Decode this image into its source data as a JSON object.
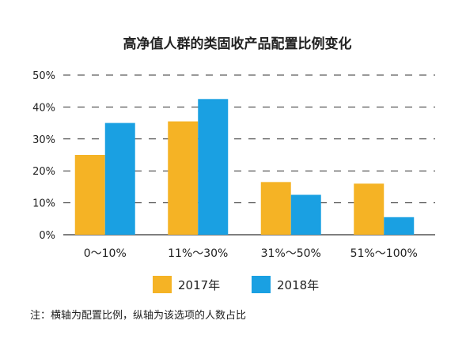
{
  "chart_data": {
    "type": "bar",
    "title": "高净值人群的类固收产品配置比例变化",
    "categories": [
      "0～10%",
      "11%～30%",
      "31%～50%",
      "51%～100%"
    ],
    "series": [
      {
        "name": "2017年",
        "values": [
          25,
          35.5,
          16.5,
          16
        ],
        "color": "#F5B325"
      },
      {
        "name": "2018年",
        "values": [
          35,
          42.5,
          12.5,
          5.5
        ],
        "color": "#1AA0E2"
      }
    ],
    "ylim": [
      0,
      50
    ],
    "yticks": [
      "0%",
      "10%",
      "20%",
      "30%",
      "40%",
      "50%"
    ],
    "grid": "dashed",
    "legend": "bottom"
  },
  "note": "注：横轴为配置比例，纵轴为该选项的人数占比"
}
